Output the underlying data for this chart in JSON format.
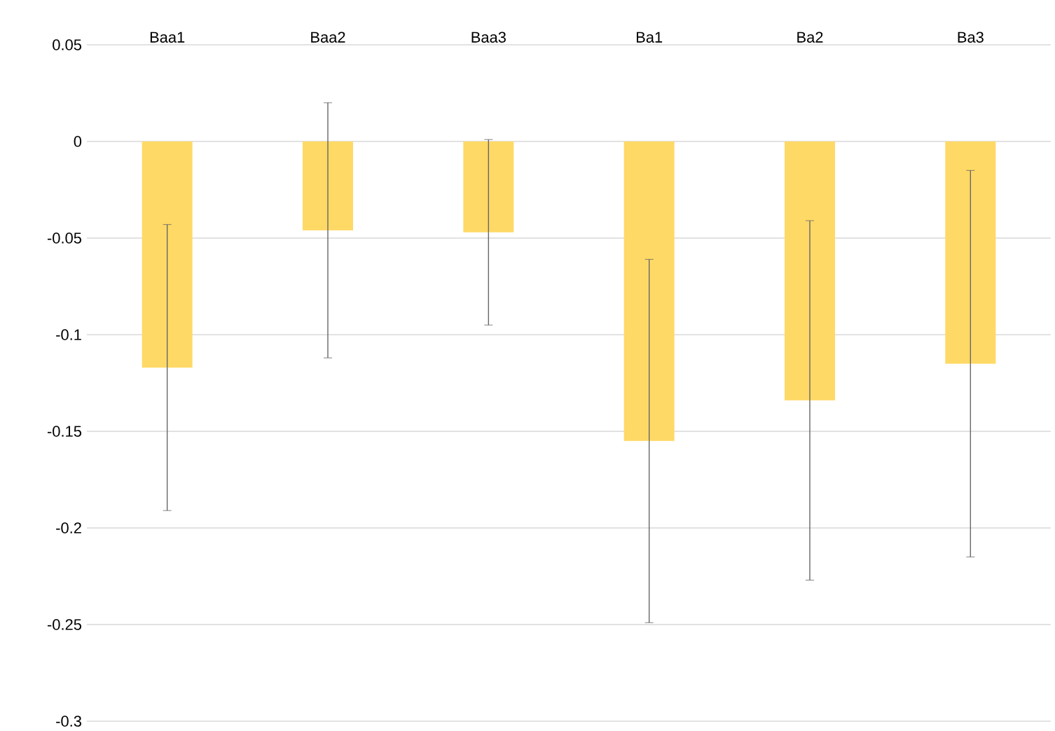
{
  "chart_data": {
    "type": "bar",
    "categories": [
      "Baa1",
      "Baa2",
      "Baa3",
      "Ba1",
      "Ba2",
      "Ba3"
    ],
    "values": [
      -0.117,
      -0.046,
      -0.047,
      -0.155,
      -0.134,
      -0.115
    ],
    "errors": [
      0.074,
      0.066,
      0.048,
      0.094,
      0.093,
      0.1
    ],
    "color": "#ffd966",
    "ylim": [
      -0.3,
      0.05
    ],
    "yticks": [
      -0.3,
      -0.25,
      -0.2,
      -0.15,
      -0.1,
      -0.05,
      0,
      0.05
    ],
    "grid": "y"
  }
}
